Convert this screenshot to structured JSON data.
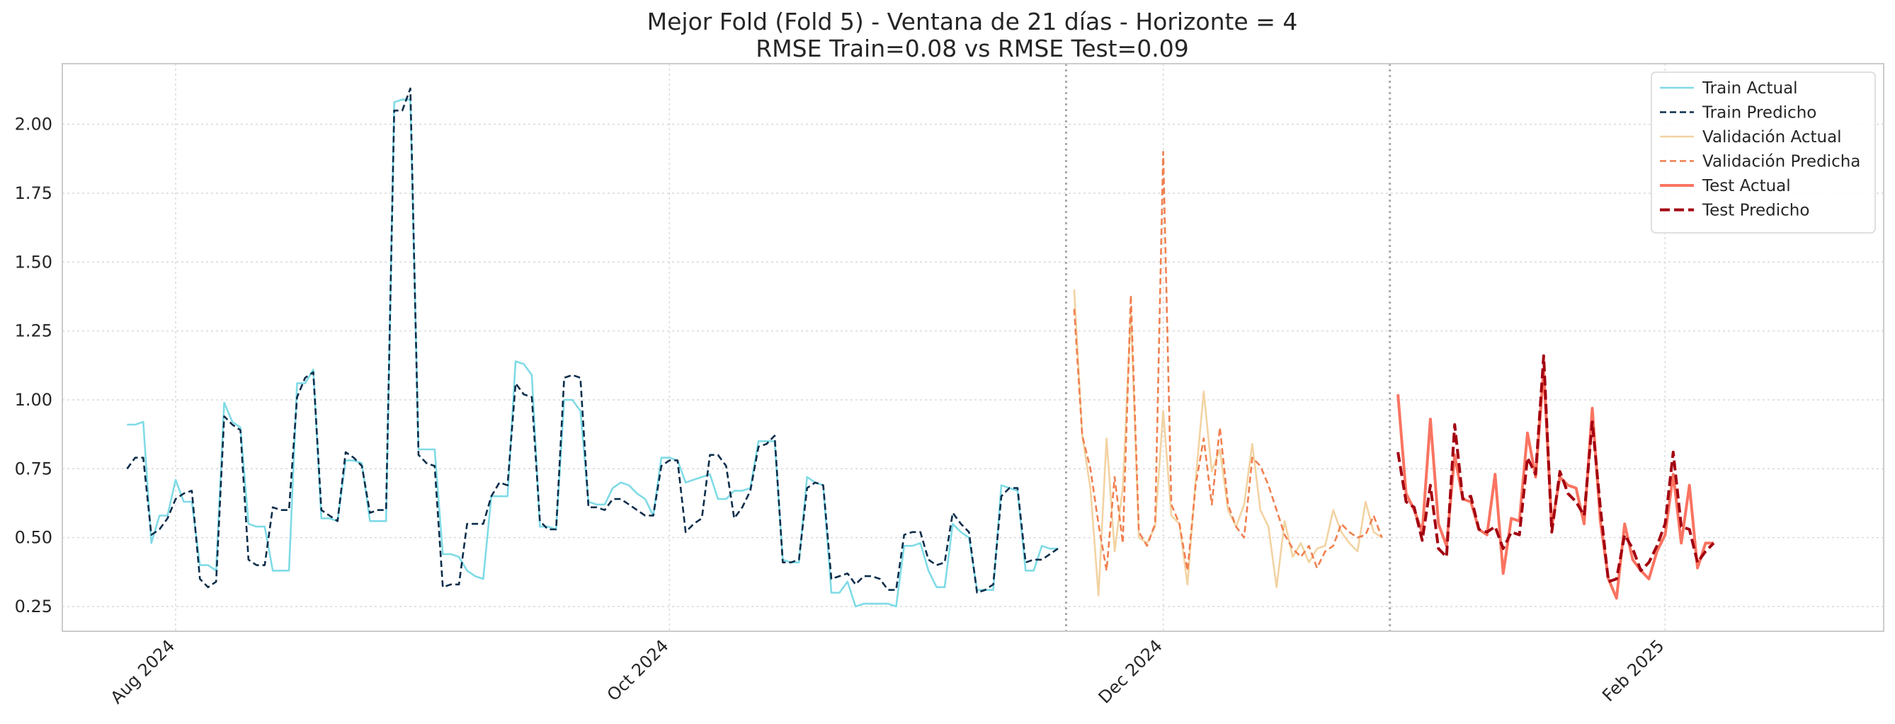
{
  "chart_data": {
    "type": "line",
    "title": "Mejor Fold (Fold 5) - Ventana de 21 días - Horizonte = 4",
    "subtitle": "RMSE Train=0.08 vs RMSE Test=0.09",
    "xlabel": "",
    "ylabel": "",
    "xlim": [
      "2024-07-18",
      "2025-02-28"
    ],
    "ylim": [
      0.16,
      2.22
    ],
    "x_ticks": [
      {
        "date": "2024-08-01",
        "label": "Aug 2024"
      },
      {
        "date": "2024-10-01",
        "label": "Oct 2024"
      },
      {
        "date": "2024-12-01",
        "label": "Dec 2024"
      },
      {
        "date": "2025-02-01",
        "label": "Feb 2025"
      }
    ],
    "y_ticks": [
      {
        "value": 0.25,
        "label": "0.25"
      },
      {
        "value": 0.5,
        "label": "0.50"
      },
      {
        "value": 0.75,
        "label": "0.75"
      },
      {
        "value": 1.0,
        "label": "1.00"
      },
      {
        "value": 1.25,
        "label": "1.25"
      },
      {
        "value": 1.5,
        "label": "1.50"
      },
      {
        "value": 1.75,
        "label": "1.75"
      },
      {
        "value": 2.0,
        "label": "2.00"
      }
    ],
    "grid": true,
    "legend_position": "top-right",
    "split_markers": [
      "2024-11-19",
      "2024-12-29"
    ],
    "series": [
      {
        "name": "Train Actual",
        "color": "#7fdbe6",
        "dash": "solid",
        "width": "thin",
        "x": [
          "2024-07-26",
          "2024-07-27",
          "2024-07-28",
          "2024-07-29",
          "2024-07-30",
          "2024-07-31",
          "2024-08-01",
          "2024-08-02",
          "2024-08-03",
          "2024-08-04",
          "2024-08-05",
          "2024-08-06",
          "2024-08-07",
          "2024-08-08",
          "2024-08-09",
          "2024-08-10",
          "2024-08-11",
          "2024-08-12",
          "2024-08-13",
          "2024-08-14",
          "2024-08-15",
          "2024-08-16",
          "2024-08-17",
          "2024-08-18",
          "2024-08-19",
          "2024-08-20",
          "2024-08-21",
          "2024-08-22",
          "2024-08-23",
          "2024-08-24",
          "2024-08-25",
          "2024-08-26",
          "2024-08-27",
          "2024-08-28",
          "2024-08-29",
          "2024-08-30",
          "2024-08-31",
          "2024-09-01",
          "2024-09-02",
          "2024-09-03",
          "2024-09-04",
          "2024-09-05",
          "2024-09-06",
          "2024-09-07",
          "2024-09-08",
          "2024-09-09",
          "2024-09-10",
          "2024-09-11",
          "2024-09-12",
          "2024-09-13",
          "2024-09-14",
          "2024-09-15",
          "2024-09-16",
          "2024-09-17",
          "2024-09-18",
          "2024-09-19",
          "2024-09-20",
          "2024-09-21",
          "2024-09-22",
          "2024-09-23",
          "2024-09-24",
          "2024-09-25",
          "2024-09-26",
          "2024-09-27",
          "2024-09-28",
          "2024-09-29",
          "2024-09-30",
          "2024-10-01",
          "2024-10-02",
          "2024-10-03",
          "2024-10-04",
          "2024-10-05",
          "2024-10-06",
          "2024-10-07",
          "2024-10-08",
          "2024-10-09",
          "2024-10-10",
          "2024-10-11",
          "2024-10-12",
          "2024-10-13",
          "2024-10-14",
          "2024-10-15",
          "2024-10-16",
          "2024-10-17",
          "2024-10-18",
          "2024-10-19",
          "2024-10-20",
          "2024-10-21",
          "2024-10-22",
          "2024-10-23",
          "2024-10-24",
          "2024-10-25",
          "2024-10-26",
          "2024-10-27",
          "2024-10-28",
          "2024-10-29",
          "2024-10-30",
          "2024-10-31",
          "2024-11-01",
          "2024-11-02",
          "2024-11-03",
          "2024-11-04",
          "2024-11-05",
          "2024-11-06",
          "2024-11-07",
          "2024-11-08",
          "2024-11-09",
          "2024-11-10",
          "2024-11-11",
          "2024-11-12",
          "2024-11-13",
          "2024-11-14",
          "2024-11-15",
          "2024-11-16",
          "2024-11-17",
          "2024-11-18"
        ],
        "y": [
          0.91,
          0.91,
          0.92,
          0.48,
          0.58,
          0.58,
          0.71,
          0.63,
          0.63,
          0.4,
          0.4,
          0.38,
          0.99,
          0.92,
          0.9,
          0.55,
          0.54,
          0.54,
          0.38,
          0.38,
          0.38,
          1.06,
          1.06,
          1.11,
          0.57,
          0.57,
          0.56,
          0.78,
          0.78,
          0.77,
          0.56,
          0.56,
          0.56,
          2.08,
          2.09,
          2.09,
          0.82,
          0.82,
          0.82,
          0.44,
          0.44,
          0.43,
          0.38,
          0.36,
          0.35,
          0.65,
          0.65,
          0.65,
          1.14,
          1.13,
          1.09,
          0.54,
          0.54,
          0.53,
          1.0,
          1.0,
          0.96,
          0.63,
          0.62,
          0.62,
          0.68,
          0.7,
          0.69,
          0.66,
          0.64,
          0.58,
          0.79,
          0.79,
          0.78,
          0.7,
          0.71,
          0.72,
          0.73,
          0.64,
          0.64,
          0.67,
          0.67,
          0.68,
          0.85,
          0.85,
          0.85,
          0.42,
          0.41,
          0.41,
          0.72,
          0.7,
          0.69,
          0.3,
          0.3,
          0.34,
          0.25,
          0.26,
          0.26,
          0.26,
          0.26,
          0.25,
          0.47,
          0.47,
          0.48,
          0.38,
          0.32,
          0.32,
          0.55,
          0.52,
          0.5,
          0.31,
          0.31,
          0.31,
          0.69,
          0.68,
          0.67,
          0.38,
          0.38,
          0.47,
          0.46,
          0.46
        ]
      },
      {
        "name": "Train Predicho",
        "color": "#0b2d4a",
        "dash": "dashed",
        "width": "thin",
        "x": [
          "2024-07-26",
          "2024-07-27",
          "2024-07-28",
          "2024-07-29",
          "2024-07-30",
          "2024-07-31",
          "2024-08-01",
          "2024-08-02",
          "2024-08-03",
          "2024-08-04",
          "2024-08-05",
          "2024-08-06",
          "2024-08-07",
          "2024-08-08",
          "2024-08-09",
          "2024-08-10",
          "2024-08-11",
          "2024-08-12",
          "2024-08-13",
          "2024-08-14",
          "2024-08-15",
          "2024-08-16",
          "2024-08-17",
          "2024-08-18",
          "2024-08-19",
          "2024-08-20",
          "2024-08-21",
          "2024-08-22",
          "2024-08-23",
          "2024-08-24",
          "2024-08-25",
          "2024-08-26",
          "2024-08-27",
          "2024-08-28",
          "2024-08-29",
          "2024-08-30",
          "2024-08-31",
          "2024-09-01",
          "2024-09-02",
          "2024-09-03",
          "2024-09-04",
          "2024-09-05",
          "2024-09-06",
          "2024-09-07",
          "2024-09-08",
          "2024-09-09",
          "2024-09-10",
          "2024-09-11",
          "2024-09-12",
          "2024-09-13",
          "2024-09-14",
          "2024-09-15",
          "2024-09-16",
          "2024-09-17",
          "2024-09-18",
          "2024-09-19",
          "2024-09-20",
          "2024-09-21",
          "2024-09-22",
          "2024-09-23",
          "2024-09-24",
          "2024-09-25",
          "2024-09-26",
          "2024-09-27",
          "2024-09-28",
          "2024-09-29",
          "2024-09-30",
          "2024-10-01",
          "2024-10-02",
          "2024-10-03",
          "2024-10-04",
          "2024-10-05",
          "2024-10-06",
          "2024-10-07",
          "2024-10-08",
          "2024-10-09",
          "2024-10-10",
          "2024-10-11",
          "2024-10-12",
          "2024-10-13",
          "2024-10-14",
          "2024-10-15",
          "2024-10-16",
          "2024-10-17",
          "2024-10-18",
          "2024-10-19",
          "2024-10-20",
          "2024-10-21",
          "2024-10-22",
          "2024-10-23",
          "2024-10-24",
          "2024-10-25",
          "2024-10-26",
          "2024-10-27",
          "2024-10-28",
          "2024-10-29",
          "2024-10-30",
          "2024-10-31",
          "2024-11-01",
          "2024-11-02",
          "2024-11-03",
          "2024-11-04",
          "2024-11-05",
          "2024-11-06",
          "2024-11-07",
          "2024-11-08",
          "2024-11-09",
          "2024-11-10",
          "2024-11-11",
          "2024-11-12",
          "2024-11-13",
          "2024-11-14",
          "2024-11-15",
          "2024-11-16",
          "2024-11-17",
          "2024-11-18"
        ],
        "y": [
          0.75,
          0.79,
          0.79,
          0.51,
          0.53,
          0.57,
          0.64,
          0.66,
          0.67,
          0.35,
          0.32,
          0.34,
          0.94,
          0.91,
          0.89,
          0.42,
          0.4,
          0.4,
          0.61,
          0.6,
          0.6,
          1.01,
          1.08,
          1.1,
          0.6,
          0.58,
          0.56,
          0.81,
          0.79,
          0.76,
          0.59,
          0.6,
          0.6,
          2.05,
          2.05,
          2.13,
          0.8,
          0.77,
          0.76,
          0.32,
          0.33,
          0.33,
          0.55,
          0.55,
          0.55,
          0.65,
          0.7,
          0.69,
          1.06,
          1.02,
          1.01,
          0.56,
          0.53,
          0.53,
          1.08,
          1.09,
          1.08,
          0.61,
          0.61,
          0.6,
          0.64,
          0.64,
          0.62,
          0.6,
          0.58,
          0.58,
          0.76,
          0.78,
          0.78,
          0.52,
          0.55,
          0.57,
          0.8,
          0.8,
          0.76,
          0.57,
          0.61,
          0.67,
          0.83,
          0.84,
          0.87,
          0.41,
          0.41,
          0.42,
          0.68,
          0.7,
          0.69,
          0.35,
          0.36,
          0.37,
          0.33,
          0.36,
          0.36,
          0.35,
          0.31,
          0.31,
          0.51,
          0.52,
          0.52,
          0.42,
          0.4,
          0.41,
          0.59,
          0.55,
          0.52,
          0.3,
          0.31,
          0.33,
          0.65,
          0.68,
          0.68,
          0.41,
          0.42,
          0.42,
          0.44,
          0.46
        ]
      },
      {
        "name": "Validación Actual",
        "color": "#f2d3a2",
        "dash": "solid",
        "width": "thin",
        "x": [
          "2024-11-20",
          "2024-11-21",
          "2024-11-22",
          "2024-11-23",
          "2024-11-24",
          "2024-11-25",
          "2024-11-26",
          "2024-11-27",
          "2024-11-28",
          "2024-11-29",
          "2024-11-30",
          "2024-12-01",
          "2024-12-02",
          "2024-12-03",
          "2024-12-04",
          "2024-12-05",
          "2024-12-06",
          "2024-12-07",
          "2024-12-08",
          "2024-12-09",
          "2024-12-10",
          "2024-12-11",
          "2024-12-12",
          "2024-12-13",
          "2024-12-14",
          "2024-12-15",
          "2024-12-16",
          "2024-12-17",
          "2024-12-18",
          "2024-12-19",
          "2024-12-20",
          "2024-12-21",
          "2024-12-22",
          "2024-12-23",
          "2024-12-24",
          "2024-12-25",
          "2024-12-26",
          "2024-12-27",
          "2024-12-28"
        ],
        "y": [
          1.4,
          0.87,
          0.68,
          0.29,
          0.86,
          0.45,
          0.68,
          1.32,
          0.5,
          0.48,
          0.54,
          0.96,
          0.58,
          0.55,
          0.33,
          0.71,
          1.03,
          0.74,
          0.82,
          0.6,
          0.54,
          0.62,
          0.84,
          0.6,
          0.54,
          0.32,
          0.56,
          0.43,
          0.48,
          0.41,
          0.46,
          0.47,
          0.6,
          0.52,
          0.48,
          0.45,
          0.63,
          0.52,
          0.5
        ]
      },
      {
        "name": "Validación Predicha",
        "color": "#f07f4f",
        "dash": "dashed",
        "width": "thin",
        "x": [
          "2024-11-20",
          "2024-11-21",
          "2024-11-22",
          "2024-11-23",
          "2024-11-24",
          "2024-11-25",
          "2024-11-26",
          "2024-11-27",
          "2024-11-28",
          "2024-11-29",
          "2024-11-30",
          "2024-12-01",
          "2024-12-02",
          "2024-12-03",
          "2024-12-04",
          "2024-12-05",
          "2024-12-06",
          "2024-12-07",
          "2024-12-08",
          "2024-12-09",
          "2024-12-10",
          "2024-12-11",
          "2024-12-12",
          "2024-12-13",
          "2024-12-14",
          "2024-12-15",
          "2024-12-16",
          "2024-12-17",
          "2024-12-18",
          "2024-12-19",
          "2024-12-20",
          "2024-12-21",
          "2024-12-22",
          "2024-12-23",
          "2024-12-24",
          "2024-12-25",
          "2024-12-26",
          "2024-12-27",
          "2024-12-28"
        ],
        "y": [
          1.33,
          0.87,
          0.75,
          0.55,
          0.38,
          0.72,
          0.48,
          1.38,
          0.52,
          0.47,
          0.55,
          1.9,
          0.62,
          0.55,
          0.38,
          0.69,
          0.86,
          0.62,
          0.9,
          0.62,
          0.54,
          0.5,
          0.79,
          0.76,
          0.69,
          0.6,
          0.51,
          0.46,
          0.43,
          0.47,
          0.39,
          0.45,
          0.47,
          0.55,
          0.52,
          0.5,
          0.51,
          0.58,
          0.5
        ]
      },
      {
        "name": "Test Actual",
        "color": "#f97461",
        "dash": "solid",
        "width": "thick",
        "x": [
          "2024-12-30",
          "2024-12-31",
          "2025-01-01",
          "2025-01-02",
          "2025-01-03",
          "2025-01-04",
          "2025-01-05",
          "2025-01-06",
          "2025-01-07",
          "2025-01-08",
          "2025-01-09",
          "2025-01-10",
          "2025-01-11",
          "2025-01-12",
          "2025-01-13",
          "2025-01-14",
          "2025-01-15",
          "2025-01-16",
          "2025-01-17",
          "2025-01-18",
          "2025-01-19",
          "2025-01-20",
          "2025-01-21",
          "2025-01-22",
          "2025-01-23",
          "2025-01-24",
          "2025-01-25",
          "2025-01-26",
          "2025-01-27",
          "2025-01-28",
          "2025-01-29",
          "2025-01-30",
          "2025-01-31",
          "2025-02-01",
          "2025-02-02",
          "2025-02-03",
          "2025-02-04",
          "2025-02-05",
          "2025-02-06",
          "2025-02-07"
        ],
        "y": [
          1.02,
          0.66,
          0.6,
          0.52,
          0.93,
          0.55,
          0.47,
          0.8,
          0.64,
          0.63,
          0.53,
          0.51,
          0.73,
          0.37,
          0.57,
          0.56,
          0.88,
          0.72,
          1.11,
          0.54,
          0.72,
          0.69,
          0.68,
          0.55,
          0.97,
          0.56,
          0.35,
          0.28,
          0.55,
          0.42,
          0.38,
          0.35,
          0.45,
          0.51,
          0.73,
          0.48,
          0.69,
          0.39,
          0.48,
          0.48
        ]
      },
      {
        "name": "Test Predicho",
        "color": "#a30010",
        "dash": "dashed",
        "width": "thick",
        "x": [
          "2024-12-30",
          "2024-12-31",
          "2025-01-01",
          "2025-01-02",
          "2025-01-03",
          "2025-01-04",
          "2025-01-05",
          "2025-01-06",
          "2025-01-07",
          "2025-01-08",
          "2025-01-09",
          "2025-01-10",
          "2025-01-11",
          "2025-01-12",
          "2025-01-13",
          "2025-01-14",
          "2025-01-15",
          "2025-01-16",
          "2025-01-17",
          "2025-01-18",
          "2025-01-19",
          "2025-01-20",
          "2025-01-21",
          "2025-01-22",
          "2025-01-23",
          "2025-01-24",
          "2025-01-25",
          "2025-01-26",
          "2025-01-27",
          "2025-01-28",
          "2025-01-29",
          "2025-01-30",
          "2025-01-31",
          "2025-02-01",
          "2025-02-02",
          "2025-02-03",
          "2025-02-04",
          "2025-02-05",
          "2025-02-06",
          "2025-02-07"
        ],
        "y": [
          0.81,
          0.63,
          0.61,
          0.49,
          0.69,
          0.46,
          0.43,
          0.91,
          0.64,
          0.65,
          0.53,
          0.52,
          0.54,
          0.46,
          0.52,
          0.51,
          0.79,
          0.73,
          1.16,
          0.52,
          0.74,
          0.66,
          0.63,
          0.58,
          0.92,
          0.61,
          0.34,
          0.35,
          0.51,
          0.46,
          0.38,
          0.41,
          0.47,
          0.55,
          0.81,
          0.54,
          0.53,
          0.41,
          0.45,
          0.48
        ]
      }
    ]
  }
}
